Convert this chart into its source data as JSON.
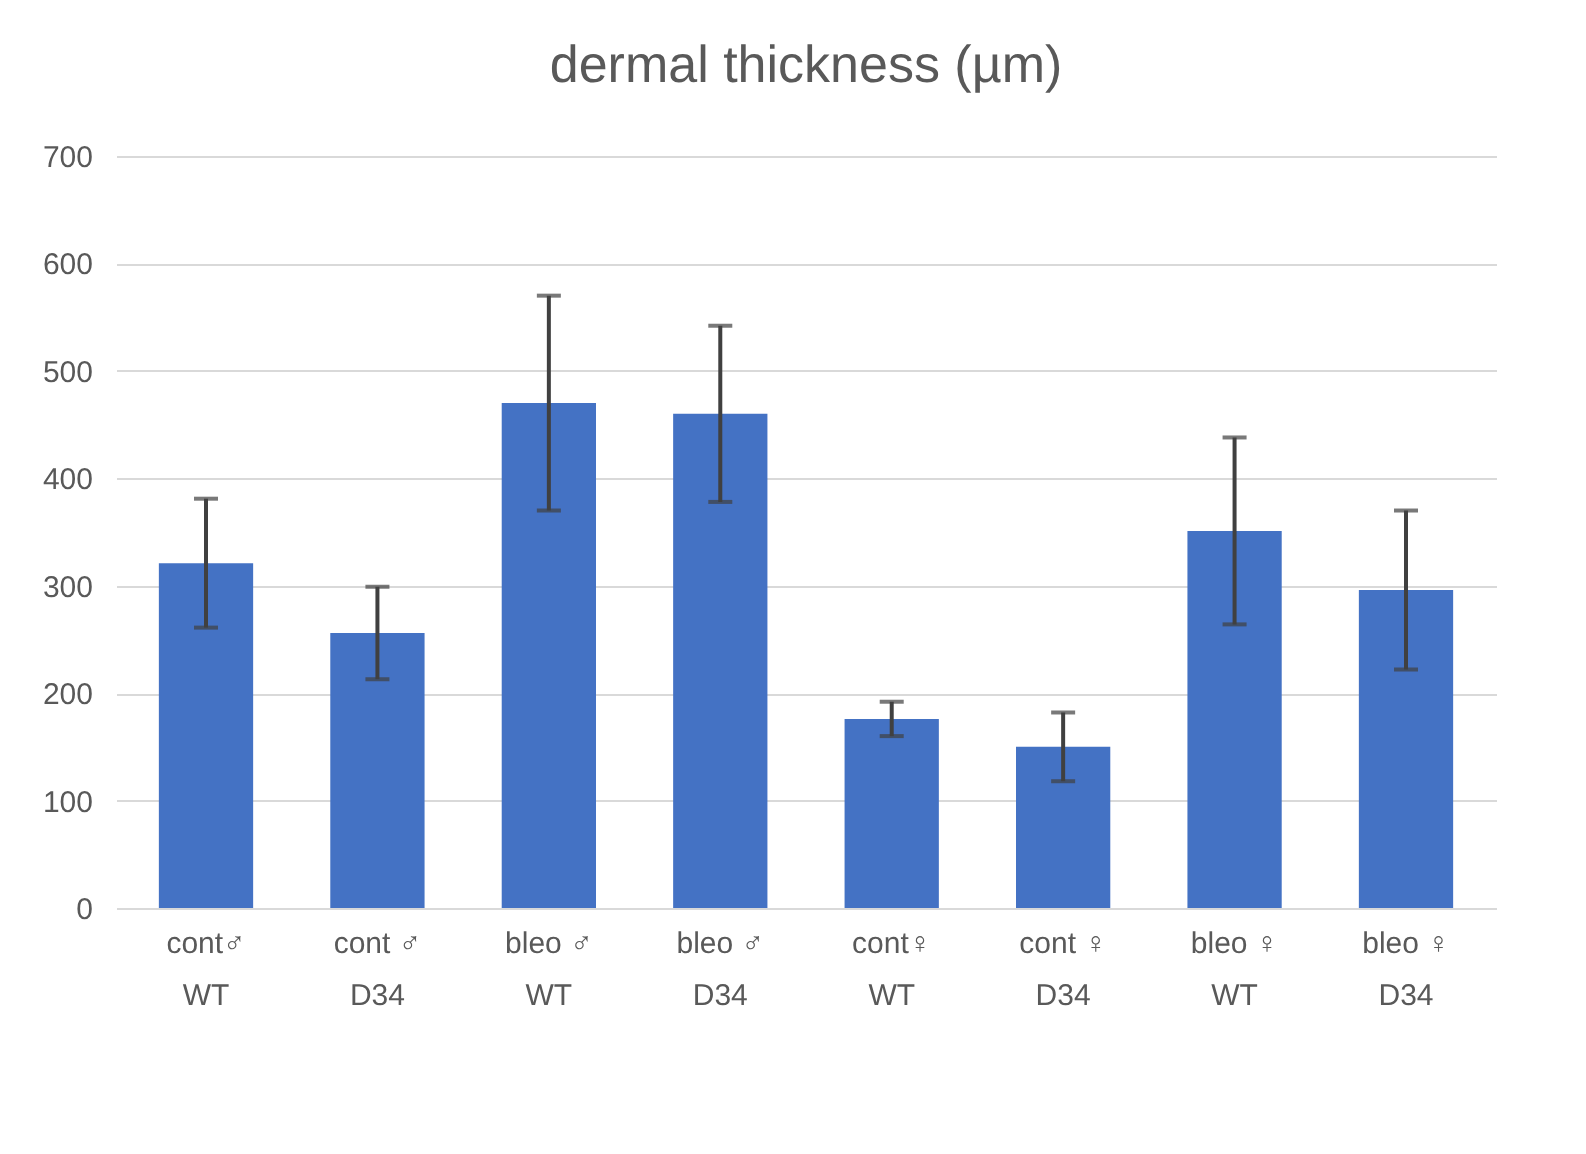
{
  "chart_data": {
    "type": "bar",
    "title": "dermal thickness (µm)",
    "categories": [
      "cont♂\nWT",
      "cont ♂\nD34",
      "bleo ♂\nWT",
      "bleo ♂\nD34",
      "cont♀\nWT",
      "cont ♀\nD34",
      "bleo ♀\nWT",
      "bleo ♀\nD34"
    ],
    "values": [
      321,
      256,
      470,
      460,
      176,
      150,
      351,
      296
    ],
    "errors": [
      60,
      43,
      100,
      82,
      16,
      32,
      87,
      74
    ],
    "color": "#4472c4",
    "ylim": [
      0,
      700
    ],
    "yticks": [
      0,
      100,
      200,
      300,
      400,
      500,
      600,
      700
    ],
    "grid": "y"
  }
}
